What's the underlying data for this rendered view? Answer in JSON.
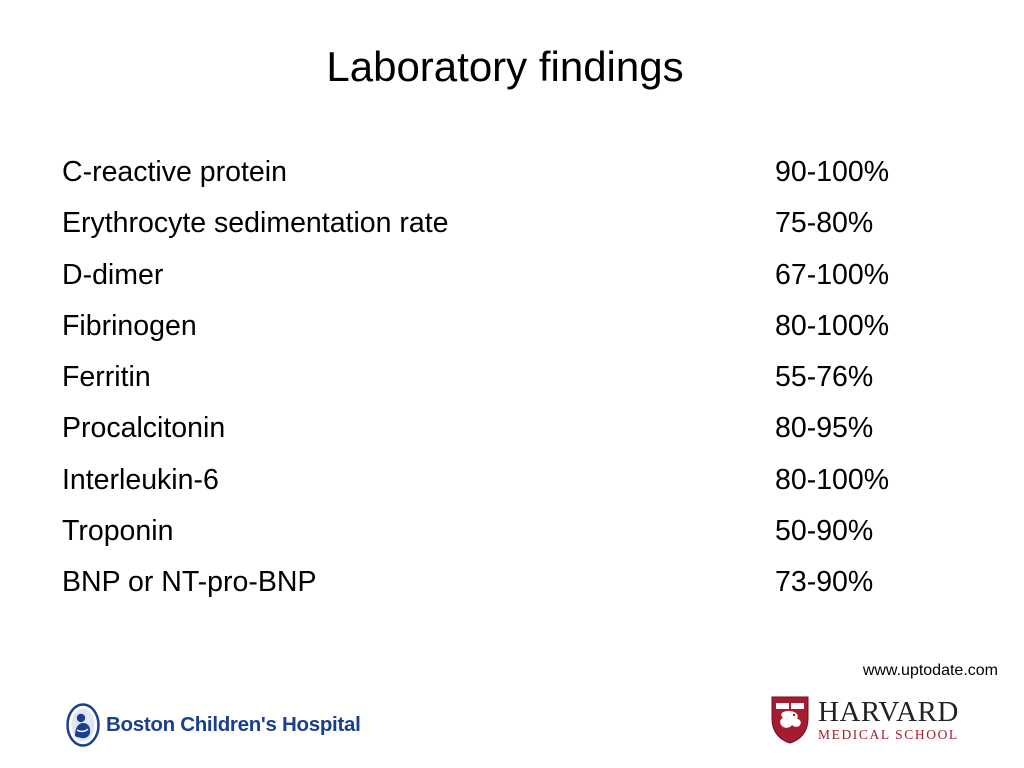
{
  "slide": {
    "title": "Laboratory findings",
    "findings": [
      {
        "name": "C-reactive protein",
        "value": "90-100%"
      },
      {
        "name": "Erythrocyte sedimentation rate",
        "value": "75-80%"
      },
      {
        "name": "D-dimer",
        "value": "67-100%"
      },
      {
        "name": "Fibrinogen",
        "value": "80-100%"
      },
      {
        "name": "Ferritin",
        "value": "55-76%"
      },
      {
        "name": "Procalcitonin",
        "value": "80-95%"
      },
      {
        "name": "Interleukin-6",
        "value": "80-100%"
      },
      {
        "name": "Troponin",
        "value": "50-90%"
      },
      {
        "name": "BNP or NT-pro-BNP",
        "value": "73-90%"
      }
    ],
    "source": "www.uptodate.com"
  },
  "logos": {
    "boston_childrens": {
      "text": "Boston Children's Hospital",
      "icon": "boston-childrens-emblem-icon",
      "color": "#1a3f8f"
    },
    "harvard": {
      "line1": "HARVARD",
      "line2": "MEDICAL SCHOOL",
      "icon": "harvard-shield-icon",
      "crimson": "#a51c30"
    }
  }
}
